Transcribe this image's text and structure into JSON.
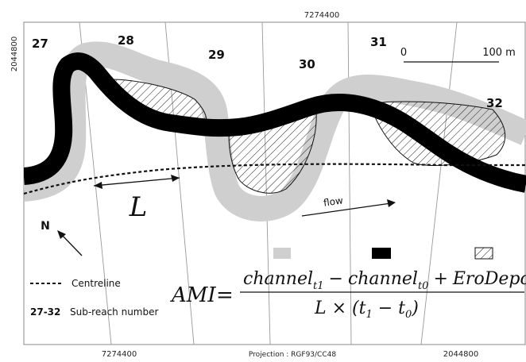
{
  "coords": {
    "top": "7274400",
    "left": "2044800",
    "bottom_left": "7274400",
    "bottom_right": "2044800",
    "projection": "Projection : RGF93/CC48"
  },
  "reaches": [
    "27",
    "28",
    "29",
    "30",
    "31",
    "32"
  ],
  "scale": {
    "zero": "0",
    "label": "100 m"
  },
  "labels": {
    "L": "L",
    "flow": "flow",
    "north": "N",
    "centreline": "Centreline",
    "subreach_bold": "27-32",
    "subreach_text": "Sub-reach number"
  },
  "formula": {
    "lhs": "AMI",
    "eq": "=",
    "num_ch1": "channel",
    "num_sub1": "t1",
    "num_minus": "−",
    "num_ch2": "channel",
    "num_sub2": "t0",
    "num_plus": "+",
    "num_ero": "EroDepo",
    "den_L": "L × (t",
    "den_sub1": "1",
    "den_minus": " − t",
    "den_sub2": "0",
    "den_close": ")"
  },
  "colors": {
    "old_channel": "#cfcfcf",
    "new_channel": "#000000",
    "hatch": "#222222"
  }
}
